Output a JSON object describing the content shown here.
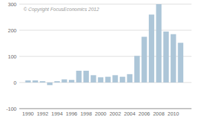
{
  "chart_data": {
    "type": "bar",
    "x": [
      1990,
      1991,
      1992,
      1993,
      1994,
      1995,
      1996,
      1997,
      1998,
      1999,
      2000,
      2001,
      2002,
      2003,
      2004,
      2005,
      2006,
      2007,
      2008,
      2009,
      2010,
      2011
    ],
    "values": [
      8,
      8,
      5,
      -10,
      5,
      12,
      10,
      45,
      45,
      28,
      20,
      22,
      28,
      22,
      32,
      102,
      175,
      260,
      300,
      195,
      185,
      152
    ],
    "color": "#adc6d8",
    "xlim": [
      1988.8,
      2012.5
    ],
    "xticks": [
      1990,
      1992,
      1994,
      1996,
      1998,
      2000,
      2002,
      2004,
      2006,
      2008,
      2010
    ],
    "ylim": [
      -100,
      300
    ],
    "yticks": [
      -100,
      0,
      100,
      200,
      300
    ],
    "grid": true,
    "annotations": [
      "© Copyright FocusEconomics  2012"
    ]
  }
}
